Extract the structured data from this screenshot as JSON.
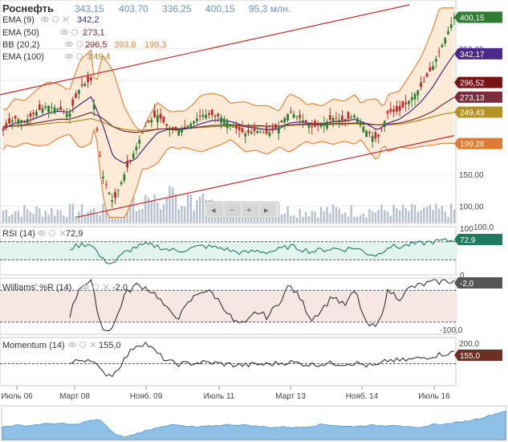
{
  "header": {
    "title": "Роснефть",
    "quote": [
      "343,15",
      "403,70",
      "336,25",
      "400,15",
      "95,3 млн."
    ]
  },
  "indicators": [
    {
      "name": "EMA (9)",
      "value": "342,2",
      "color": "#3d2a7c"
    },
    {
      "name": "EMA (50)",
      "value": "273,1",
      "color": "#7a2a3a"
    },
    {
      "name": "BB (20,2)",
      "value": "296,5",
      "value2": "393,8",
      "value3": "199,3",
      "color": "#8b1a1a",
      "color2": "#e8853a",
      "color3": "#e8853a"
    },
    {
      "name": "EMA (100)",
      "value": "249,4",
      "color": "#b08a1e"
    }
  ],
  "price_axis": {
    "ticks": [
      "350,00",
      "300,00",
      "250,00",
      "200,00",
      "150,00",
      "100,00"
    ],
    "tags": [
      {
        "text": "400,15",
        "color": "#2e7d32"
      },
      {
        "text": "342,17",
        "color": "#4a2a8a"
      },
      {
        "text": "296,52",
        "color": "#7a1414"
      },
      {
        "text": "273,13",
        "color": "#7b2d3d"
      },
      {
        "text": "249,43",
        "color": "#b59320"
      },
      {
        "text": "199,28",
        "color": "#e07a30"
      }
    ],
    "volume_label": "100,0"
  },
  "panels": {
    "rsi": {
      "name": "RSI (14)",
      "value": "72,9",
      "tag_color": "#1f7a5e",
      "top_label": "100",
      "bottom_label": "0"
    },
    "williams": {
      "name": "Williams' %R (14)",
      "value": "-2,0",
      "tag_color": "#555555",
      "bottom_label": "-100,0"
    },
    "momentum": {
      "name": "Momentum (14)",
      "value": "155,0",
      "tag_color": "#6b2f24",
      "top_label": "200,0"
    }
  },
  "time_axis": [
    "Июль 06",
    "Март 08",
    "Нояб. 09",
    "Июль 11",
    "Март 13",
    "Нояб. 14",
    "Июль 16"
  ],
  "zoom_controls": [
    "◂",
    "−",
    "+",
    "▸"
  ],
  "colors": {
    "up": "#2e7d32",
    "down": "#c62828",
    "trend": "#c62828",
    "bb_fill": "#fdebd8",
    "volume": "#b5bfcf",
    "navigator": "#8fc1e8"
  },
  "chart_data": {
    "type": "line",
    "title": "Роснефть",
    "x": [
      "2006-07",
      "2006-10",
      "2007-01",
      "2007-04",
      "2007-07",
      "2007-10",
      "2008-01",
      "2008-04",
      "2008-07",
      "2008-10",
      "2009-01",
      "2009-04",
      "2009-07",
      "2009-10",
      "2010-01",
      "2010-04",
      "2010-07",
      "2010-10",
      "2011-01",
      "2011-04",
      "2011-07",
      "2011-10",
      "2012-01",
      "2012-04",
      "2012-07",
      "2012-10",
      "2013-01",
      "2013-04",
      "2013-07",
      "2013-10",
      "2014-01",
      "2014-04",
      "2014-07",
      "2014-10",
      "2015-01",
      "2015-04",
      "2015-07",
      "2015-10",
      "2016-01",
      "2016-04",
      "2016-07",
      "2016-09"
    ],
    "series": [
      {
        "name": "Роснефть",
        "values": [
          220,
          240,
          235,
          250,
          260,
          255,
          245,
          290,
          300,
          150,
          105,
          150,
          190,
          230,
          245,
          225,
          220,
          230,
          245,
          245,
          240,
          225,
          215,
          220,
          215,
          225,
          250,
          240,
          225,
          230,
          240,
          235,
          245,
          220,
          205,
          250,
          250,
          270,
          290,
          320,
          360,
          400
        ]
      },
      {
        "name": "EMA (9)",
        "values": [
          222,
          232,
          234,
          240,
          247,
          251,
          249,
          262,
          274,
          232,
          178,
          168,
          174,
          196,
          216,
          222,
          221,
          224,
          231,
          236,
          237,
          233,
          226,
          224,
          221,
          222,
          232,
          234,
          231,
          231,
          234,
          235,
          238,
          231,
          221,
          232,
          238,
          250,
          266,
          288,
          316,
          342
        ]
      },
      {
        "name": "EMA (50)",
        "values": [
          225,
          228,
          229,
          232,
          235,
          238,
          238,
          243,
          249,
          240,
          226,
          219,
          217,
          219,
          222,
          223,
          223,
          224,
          226,
          228,
          229,
          229,
          228,
          228,
          227,
          227,
          229,
          230,
          230,
          230,
          231,
          231,
          232,
          231,
          229,
          230,
          232,
          236,
          242,
          250,
          262,
          273
        ]
      },
      {
        "name": "EMA (100)",
        "values": [
          226,
          227,
          228,
          229,
          231,
          233,
          233,
          236,
          239,
          234,
          226,
          222,
          220,
          221,
          222,
          223,
          223,
          224,
          225,
          226,
          227,
          227,
          227,
          227,
          227,
          227,
          228,
          229,
          229,
          229,
          230,
          230,
          231,
          230,
          229,
          229,
          230,
          233,
          237,
          242,
          246,
          249
        ]
      },
      {
        "name": "RSI (14)",
        "values": [
          55,
          62,
          58,
          60,
          62,
          58,
          55,
          63,
          66,
          30,
          22,
          45,
          58,
          63,
          60,
          52,
          50,
          55,
          60,
          58,
          55,
          48,
          45,
          50,
          47,
          52,
          60,
          55,
          48,
          52,
          55,
          53,
          57,
          45,
          40,
          60,
          58,
          64,
          66,
          70,
          72,
          73
        ]
      },
      {
        "name": "Williams' %R (14)",
        "values": [
          -60,
          -30,
          -45,
          -20,
          -15,
          -50,
          -70,
          -10,
          -5,
          -95,
          -90,
          -30,
          -10,
          -15,
          -30,
          -60,
          -70,
          -40,
          -20,
          -25,
          -50,
          -80,
          -85,
          -60,
          -70,
          -45,
          -10,
          -35,
          -75,
          -55,
          -30,
          -50,
          -20,
          -85,
          -90,
          -20,
          -35,
          -15,
          -10,
          -5,
          -3,
          -2
        ]
      },
      {
        "name": "Momentum (14)",
        "values": [
          100,
          106,
          102,
          104,
          106,
          102,
          98,
          118,
          124,
          55,
          45,
          120,
          190,
          200,
          150,
          110,
          98,
          102,
          106,
          104,
          99,
          94,
          92,
          97,
          96,
          102,
          108,
          101,
          95,
          99,
          102,
          100,
          104,
          92,
          88,
          118,
          114,
          120,
          128,
          138,
          148,
          155
        ]
      }
    ],
    "ylim": [
      80,
      420
    ],
    "xlabel": "",
    "ylabel": "",
    "grid": true,
    "legend": "top-left"
  }
}
